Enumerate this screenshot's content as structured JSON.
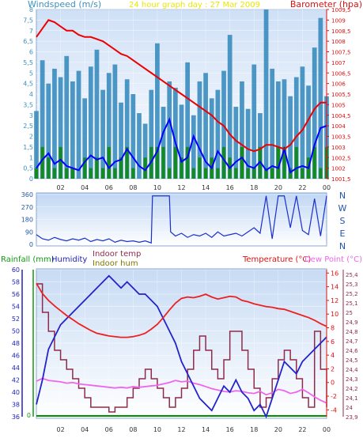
{
  "header": {
    "windspeed_title": "Windspeed (m/s)",
    "center_title": "24 hour graph day : 27 Mar 2009",
    "barometer_title": "Barometer (hpa)"
  },
  "colors": {
    "wind_bar": "#2f86bb",
    "wind_avg": "#0000ff",
    "gust_green": "#0e8a0e",
    "barometer": "#ee0000",
    "humidity": "#2323cc",
    "indoor_temp": "#8e2b4b",
    "temperature": "#ee2020",
    "dew_point": "#ee66ee",
    "rain": "#009000",
    "indoor_hum": "#807800"
  },
  "chart_data": [
    {
      "type": "bar",
      "title": "24 hour graph day : 27 Mar 2009",
      "ylabel": "Windspeed (m/s)",
      "y2label": "Barometer (hpa)",
      "xlim": [
        0,
        24
      ],
      "ylim": [
        0,
        8
      ],
      "y2lim": [
        1001.5,
        1009.5
      ],
      "x_ticks": [
        "02",
        "04",
        "06",
        "08",
        "10",
        "12",
        "14",
        "16",
        "18",
        "20",
        "22",
        "00"
      ],
      "y_ticks": [
        "0",
        "0,5",
        "1",
        "1,5",
        "2",
        "2,5",
        "3",
        "3,5",
        "4",
        "4,5",
        "5",
        "5,5",
        "6",
        "6,5",
        "7",
        "7,5",
        "8"
      ],
      "y2_ticks": [
        "1001,5",
        "1002",
        "1002,5",
        "1003",
        "1003,5",
        "1004",
        "1004,5",
        "1005",
        "1005,5",
        "1006",
        "1006,5",
        "1007",
        "1007,5",
        "1008",
        "1008,5",
        "1009",
        "1009,5"
      ],
      "series": [
        {
          "name": "Windspeed (m/s)",
          "kind": "gust-bars",
          "x": [
            0,
            0.5,
            1,
            1.5,
            2,
            2.5,
            3,
            3.5,
            4,
            4.5,
            5,
            5.5,
            6,
            6.5,
            7,
            7.5,
            8,
            8.5,
            9,
            9.5,
            10,
            10.5,
            11,
            11.5,
            12,
            12.5,
            13,
            13.5,
            14,
            14.5,
            15,
            15.5,
            16,
            16.5,
            17,
            17.5,
            18,
            18.5,
            19,
            19.5,
            20,
            20.5,
            21,
            21.5,
            22,
            22.5,
            23,
            23.5,
            24
          ],
          "values": [
            3.2,
            5.6,
            4.5,
            5.2,
            4.8,
            5.8,
            4.6,
            5.1,
            3.8,
            5.3,
            6.1,
            4.2,
            5.0,
            5.4,
            3.6,
            4.7,
            4.0,
            3.1,
            2.6,
            4.2,
            6.4,
            3.4,
            4.6,
            4.3,
            3.5,
            5.5,
            3.0,
            4.6,
            5.0,
            3.8,
            4.2,
            5.1,
            6.8,
            3.4,
            4.6,
            3.3,
            5.4,
            3.1,
            8.0,
            5.2,
            4.6,
            4.7,
            3.9,
            4.8,
            5.3,
            4.4,
            6.2,
            7.6,
            3.9
          ]
        },
        {
          "name": "Average windspeed",
          "kind": "line",
          "x": [
            0,
            0.5,
            1,
            1.5,
            2,
            2.5,
            3,
            3.5,
            4,
            4.5,
            5,
            5.5,
            6,
            6.5,
            7,
            7.5,
            8,
            8.5,
            9,
            9.5,
            10,
            10.5,
            11,
            11.5,
            12,
            12.5,
            13,
            13.5,
            14,
            14.5,
            15,
            15.5,
            16,
            16.5,
            17,
            17.5,
            18,
            18.5,
            19,
            19.5,
            20,
            20.5,
            21,
            21.5,
            22,
            22.5,
            23,
            23.5,
            24
          ],
          "values": [
            0.5,
            0.9,
            1.2,
            0.7,
            0.9,
            0.6,
            0.5,
            0.4,
            0.8,
            1.1,
            0.9,
            1.0,
            0.5,
            0.8,
            0.9,
            1.4,
            1.0,
            0.6,
            0.4,
            0.8,
            1.3,
            2.2,
            2.8,
            1.7,
            0.8,
            1.0,
            2.0,
            1.4,
            0.8,
            0.5,
            1.3,
            0.9,
            0.5,
            0.8,
            1.0,
            0.6,
            0.5,
            0.8,
            0.4,
            0.6,
            0.5,
            1.4,
            0.3,
            0.5,
            0.6,
            0.5,
            1.6,
            2.4,
            2.5
          ]
        },
        {
          "name": "Gust",
          "kind": "bars",
          "x": [
            0,
            0.5,
            1,
            1.5,
            2,
            2.5,
            3,
            3.5,
            4,
            4.5,
            5,
            5.5,
            6,
            6.5,
            7,
            7.5,
            8,
            8.5,
            9,
            9.5,
            10,
            10.5,
            11,
            11.5,
            12,
            12.5,
            13,
            13.5,
            14,
            14.5,
            15,
            15.5,
            16,
            16.5,
            17,
            17.5,
            18,
            18.5,
            19,
            19.5,
            20,
            20.5,
            21,
            21.5,
            22,
            22.5,
            23,
            23.5,
            24
          ],
          "values": [
            0.5,
            1.5,
            1.0,
            0.5,
            1.5,
            0.5,
            0.5,
            0,
            1.0,
            0.5,
            1.0,
            0.5,
            1.5,
            0.5,
            1.0,
            1.5,
            0.5,
            0,
            1.0,
            1.5,
            1.5,
            1.5,
            0.5,
            1.5,
            1.0,
            1.5,
            0.5,
            1.0,
            0.5,
            1.0,
            0.5,
            1.5,
            1.0,
            0.5,
            1.5,
            0.5,
            0.5,
            1.5,
            0.5,
            0.5,
            1.5,
            1.5,
            0.5,
            1.5,
            0.5,
            1.0,
            1.5,
            0.5,
            1.5
          ]
        },
        {
          "name": "Barometer (hpa)",
          "kind": "line",
          "axis": "right",
          "x": [
            0,
            0.5,
            1,
            1.5,
            2,
            2.5,
            3,
            3.5,
            4,
            4.5,
            5,
            5.5,
            6,
            6.5,
            7,
            7.5,
            8,
            8.5,
            9,
            9.5,
            10,
            10.5,
            11,
            11.5,
            12,
            12.5,
            13,
            13.5,
            14,
            14.5,
            15,
            15.5,
            16,
            16.5,
            17,
            17.5,
            18,
            18.5,
            19,
            19.5,
            20,
            20.5,
            21,
            21.5,
            22,
            22.5,
            23,
            23.5,
            24
          ],
          "values": [
            1008.2,
            1008.6,
            1009.0,
            1008.9,
            1008.7,
            1008.5,
            1008.5,
            1008.3,
            1008.2,
            1008.2,
            1008.1,
            1008.0,
            1007.8,
            1007.6,
            1007.4,
            1007.3,
            1007.1,
            1006.9,
            1006.7,
            1006.5,
            1006.3,
            1006.1,
            1005.9,
            1005.7,
            1005.5,
            1005.3,
            1005.1,
            1004.9,
            1004.7,
            1004.5,
            1004.2,
            1004.0,
            1003.6,
            1003.3,
            1003.1,
            1002.9,
            1002.8,
            1002.9,
            1003.1,
            1003.1,
            1003.0,
            1002.9,
            1003.1,
            1003.5,
            1003.8,
            1004.3,
            1004.8,
            1005.1,
            1005.1
          ]
        }
      ]
    },
    {
      "type": "line",
      "ylabel": "Wind direction",
      "xlim": [
        0,
        24
      ],
      "ylim": [
        0,
        360
      ],
      "y_ticks": [
        "0",
        "90",
        "180",
        "270",
        "360"
      ],
      "compass_labels": [
        "N",
        "W",
        "S",
        "E",
        "N"
      ],
      "series": [
        {
          "name": "Wind direction",
          "x": [
            0,
            0.5,
            1,
            1.5,
            2,
            2.5,
            3,
            3.5,
            4,
            4.5,
            5,
            5.5,
            6,
            6.5,
            7,
            7.5,
            8,
            8.5,
            9,
            9.5,
            9.6,
            10,
            10.5,
            11,
            11.1,
            11.5,
            12,
            12.5,
            13,
            13.5,
            14,
            14.5,
            15,
            15.5,
            16,
            16.5,
            17,
            17.5,
            18,
            18.5,
            19,
            19.5,
            20,
            20.5,
            21,
            21.5,
            22,
            22.5,
            23,
            23.5,
            24
          ],
          "values": [
            70,
            40,
            30,
            50,
            35,
            25,
            40,
            30,
            45,
            20,
            35,
            25,
            40,
            15,
            30,
            20,
            25,
            15,
            25,
            10,
            350,
            350,
            350,
            350,
            90,
            60,
            80,
            50,
            70,
            60,
            80,
            50,
            90,
            60,
            70,
            80,
            60,
            90,
            120,
            80,
            350,
            40,
            350,
            350,
            120,
            350,
            100,
            70,
            330,
            60,
            350
          ]
        }
      ]
    },
    {
      "type": "line",
      "ylabel": "Humidity",
      "y_left_label": "Rainfall (mm)",
      "extra_labels": [
        "Indoor temp",
        "Indoor hum"
      ],
      "y2label": "Temperature (°C)",
      "y3label": "Dew Point (°C)",
      "xlim": [
        0,
        24
      ],
      "ylim": [
        36,
        60
      ],
      "y_ticks": [
        "36",
        "38",
        "40",
        "42",
        "44",
        "46",
        "48",
        "50",
        "52",
        "54",
        "56",
        "58",
        "60"
      ],
      "rain_ticks": [
        "0"
      ],
      "temp_ticks": [
        "-4",
        "-2",
        "0",
        "2",
        "4",
        "6",
        "8",
        "10",
        "12",
        "14",
        "16"
      ],
      "temp_lim": [
        -5,
        16.5
      ],
      "indoor_ticks": [
        "23,9",
        "24",
        "24,1",
        "24,2",
        "24,3",
        "24,4",
        "24,5",
        "24,6",
        "24,7",
        "24,8",
        "24,9",
        "25",
        "25,1",
        "25,2",
        "25,3",
        "25,4"
      ],
      "indoor_lim": [
        23.9,
        25.45
      ],
      "series": [
        {
          "name": "Humidity",
          "x": [
            0,
            0.5,
            1,
            1.5,
            2,
            2.5,
            3,
            3.5,
            4,
            4.5,
            5,
            5.5,
            6,
            6.5,
            7,
            7.5,
            8,
            8.5,
            9,
            9.5,
            10,
            10.5,
            11,
            11.5,
            12,
            12.5,
            13,
            13.5,
            14,
            14.5,
            15,
            15.5,
            16,
            16.5,
            17,
            17.5,
            18,
            18.5,
            19,
            19.5,
            20,
            20.5,
            21,
            21.5,
            22,
            22.5,
            23,
            23.5,
            24
          ],
          "values": [
            38,
            42,
            47,
            49,
            51,
            52,
            53,
            54,
            55,
            56,
            57,
            58,
            59,
            58,
            57,
            58,
            57,
            56,
            56,
            55,
            54,
            52,
            50,
            48,
            45,
            43,
            41,
            39,
            38,
            37,
            39,
            41,
            40,
            42,
            40,
            39,
            37,
            38,
            36,
            39,
            42,
            45,
            44,
            43,
            45,
            46,
            47,
            48,
            49
          ]
        },
        {
          "name": "Temperature (°C)",
          "axis": "temp",
          "x": [
            0,
            0.5,
            1,
            1.5,
            2,
            2.5,
            3,
            3.5,
            4,
            4.5,
            5,
            5.5,
            6,
            6.5,
            7,
            7.5,
            8,
            8.5,
            9,
            9.5,
            10,
            10.5,
            11,
            11.5,
            12,
            12.5,
            13,
            13.5,
            14,
            14.5,
            15,
            15.5,
            16,
            16.5,
            17,
            17.5,
            18,
            18.5,
            19,
            19.5,
            20,
            20.5,
            21,
            21.5,
            22,
            22.5,
            23,
            23.5,
            24
          ],
          "values": [
            14.5,
            13.0,
            12.0,
            11.2,
            10.5,
            9.8,
            9.2,
            8.6,
            8.1,
            7.6,
            7.2,
            7.0,
            6.8,
            6.7,
            6.6,
            6.6,
            6.7,
            6.9,
            7.2,
            7.8,
            8.5,
            9.5,
            10.6,
            11.6,
            12.3,
            12.5,
            12.4,
            12.6,
            12.9,
            12.5,
            12.2,
            12.4,
            12.6,
            12.5,
            12.0,
            11.8,
            11.5,
            11.3,
            11.1,
            11.0,
            10.8,
            10.7,
            10.4,
            10.1,
            9.8,
            9.5,
            9.1,
            8.6,
            8.2
          ]
        },
        {
          "name": "Dew Point (°C)",
          "axis": "temp",
          "x": [
            0,
            0.5,
            1,
            1.5,
            2,
            2.5,
            3,
            3.5,
            4,
            4.5,
            5,
            5.5,
            6,
            6.5,
            7,
            7.5,
            8,
            8.5,
            9,
            9.5,
            10,
            10.5,
            11,
            11.5,
            12,
            12.5,
            13,
            13.5,
            14,
            14.5,
            15,
            15.5,
            16,
            16.5,
            17,
            17.5,
            18,
            18.5,
            19,
            19.5,
            20,
            20.5,
            21,
            21.5,
            22,
            22.5,
            23,
            23.5,
            24
          ],
          "values": [
            0.2,
            0.6,
            0.3,
            0.2,
            0.1,
            -0.1,
            0.0,
            -0.2,
            -0.3,
            -0.4,
            -0.5,
            -0.6,
            -0.7,
            -0.8,
            -0.7,
            -0.8,
            -0.6,
            -0.7,
            -0.6,
            -0.5,
            -0.4,
            -0.2,
            0.0,
            0.3,
            0.1,
            0.2,
            -0.1,
            -0.3,
            -0.6,
            -0.9,
            -1.1,
            -1.3,
            -1.4,
            -1.2,
            -1.3,
            -1.5,
            -1.6,
            -1.3,
            -1.8,
            -1.5,
            -1.0,
            -1.2,
            -1.6,
            -1.4,
            -1.0,
            -1.5,
            -2.1,
            -2.6,
            -3.0
          ]
        },
        {
          "name": "Indoor temp",
          "axis": "indoor",
          "x": [
            0,
            0.5,
            1,
            1.5,
            2,
            2.5,
            3,
            3.5,
            4,
            4.5,
            5,
            5.5,
            6,
            6.5,
            7,
            7.5,
            8,
            8.5,
            9,
            9.5,
            10,
            10.5,
            11,
            11.5,
            12,
            12.5,
            13,
            13.5,
            14,
            14.5,
            15,
            15.5,
            16,
            16.5,
            17,
            17.5,
            18,
            18.5,
            19,
            19.5,
            20,
            20.5,
            21,
            21.5,
            22,
            22.5,
            23,
            23.5,
            24
          ],
          "values": [
            25.3,
            25.0,
            24.8,
            24.6,
            24.5,
            24.4,
            24.3,
            24.2,
            24.1,
            24.0,
            24.0,
            24.0,
            23.95,
            24.0,
            24.0,
            24.1,
            24.2,
            24.3,
            24.4,
            24.3,
            24.2,
            24.1,
            24.0,
            24.1,
            24.2,
            24.4,
            24.6,
            24.75,
            24.6,
            24.4,
            24.3,
            24.5,
            24.8,
            24.8,
            24.6,
            24.4,
            24.2,
            24.0,
            24.1,
            24.3,
            24.5,
            24.6,
            24.5,
            24.3,
            24.1,
            24.0,
            24.8,
            24.4,
            24.0
          ]
        },
        {
          "name": "Rainfall (mm)",
          "axis": "rain",
          "x": [
            0,
            24
          ],
          "values": [
            0,
            0
          ]
        }
      ],
      "x_ticks": [
        "02",
        "04",
        "06",
        "08",
        "10",
        "12",
        "14",
        "16",
        "18",
        "20",
        "22",
        "00"
      ]
    }
  ]
}
